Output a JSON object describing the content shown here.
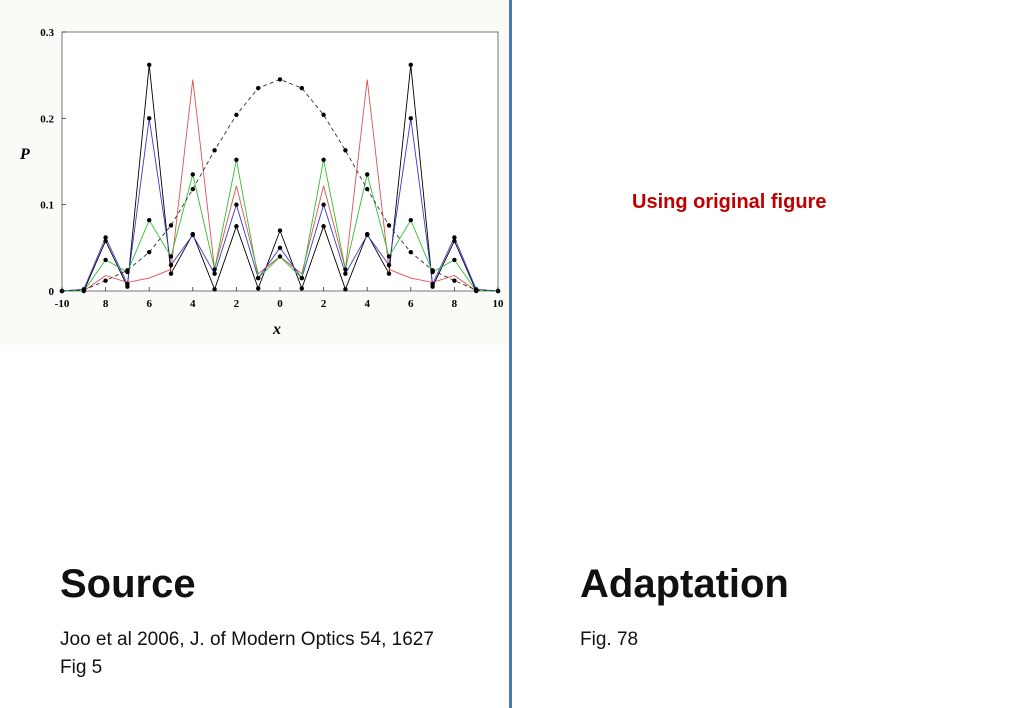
{
  "chart_data": {
    "type": "line",
    "xlabel": "x",
    "ylabel": "P",
    "xlim": [
      -10,
      10
    ],
    "ylim": [
      0,
      0.3
    ],
    "xtick_labels": [
      "-10",
      "8",
      "6",
      "4",
      "2",
      "0",
      "2",
      "4",
      "6",
      "8",
      "10"
    ],
    "ytick_labels": [
      "0",
      "0.1",
      "0.2",
      "0.3"
    ],
    "grid": false,
    "x": [
      -10,
      -9,
      -8,
      -7,
      -6,
      -5,
      -4,
      -3,
      -2,
      -1,
      0,
      1,
      2,
      3,
      4,
      5,
      6,
      7,
      8,
      9,
      10
    ],
    "series": [
      {
        "color": "#000000",
        "style": "solid",
        "markers": true,
        "values": [
          0,
          0,
          0.058,
          0.005,
          0.262,
          0.02,
          0.066,
          0.002,
          0.075,
          0.003,
          0.07,
          0.003,
          0.075,
          0.002,
          0.066,
          0.02,
          0.262,
          0.005,
          0.058,
          0,
          0
        ]
      },
      {
        "color": "#e05050",
        "style": "solid",
        "markers": false,
        "values": [
          0,
          0,
          0.018,
          0.01,
          0.015,
          0.025,
          0.245,
          0.025,
          0.122,
          0.02,
          0.04,
          0.02,
          0.122,
          0.025,
          0.245,
          0.025,
          0.015,
          0.01,
          0.018,
          0,
          0
        ]
      },
      {
        "color": "#3a3ad0",
        "style": "solid",
        "markers": true,
        "values": [
          0,
          0.002,
          0.062,
          0.008,
          0.2,
          0.03,
          0.065,
          0.02,
          0.1,
          0.015,
          0.05,
          0.015,
          0.1,
          0.02,
          0.065,
          0.03,
          0.2,
          0.008,
          0.062,
          0.002,
          0
        ]
      },
      {
        "color": "#30c030",
        "style": "solid",
        "markers": true,
        "values": [
          0,
          0,
          0.036,
          0.022,
          0.082,
          0.04,
          0.135,
          0.025,
          0.152,
          0.015,
          0.04,
          0.015,
          0.152,
          0.025,
          0.135,
          0.04,
          0.082,
          0.022,
          0.036,
          0,
          0
        ]
      },
      {
        "color": "#333333",
        "style": "dashed",
        "markers": true,
        "values": [
          0,
          0.001,
          0.012,
          0.024,
          0.045,
          0.076,
          0.118,
          0.163,
          0.204,
          0.235,
          0.245,
          0.235,
          0.204,
          0.163,
          0.118,
          0.076,
          0.045,
          0.024,
          0.012,
          0.001,
          0
        ]
      }
    ]
  },
  "left": {
    "heading": "Source",
    "ref_line1": "Joo et al 2006, J. of Modern Optics 54, 1627",
    "ref_line2": "Fig 5"
  },
  "right": {
    "note": "Using original figure",
    "heading": "Adaptation",
    "ref_line1": "Fig. 78"
  }
}
